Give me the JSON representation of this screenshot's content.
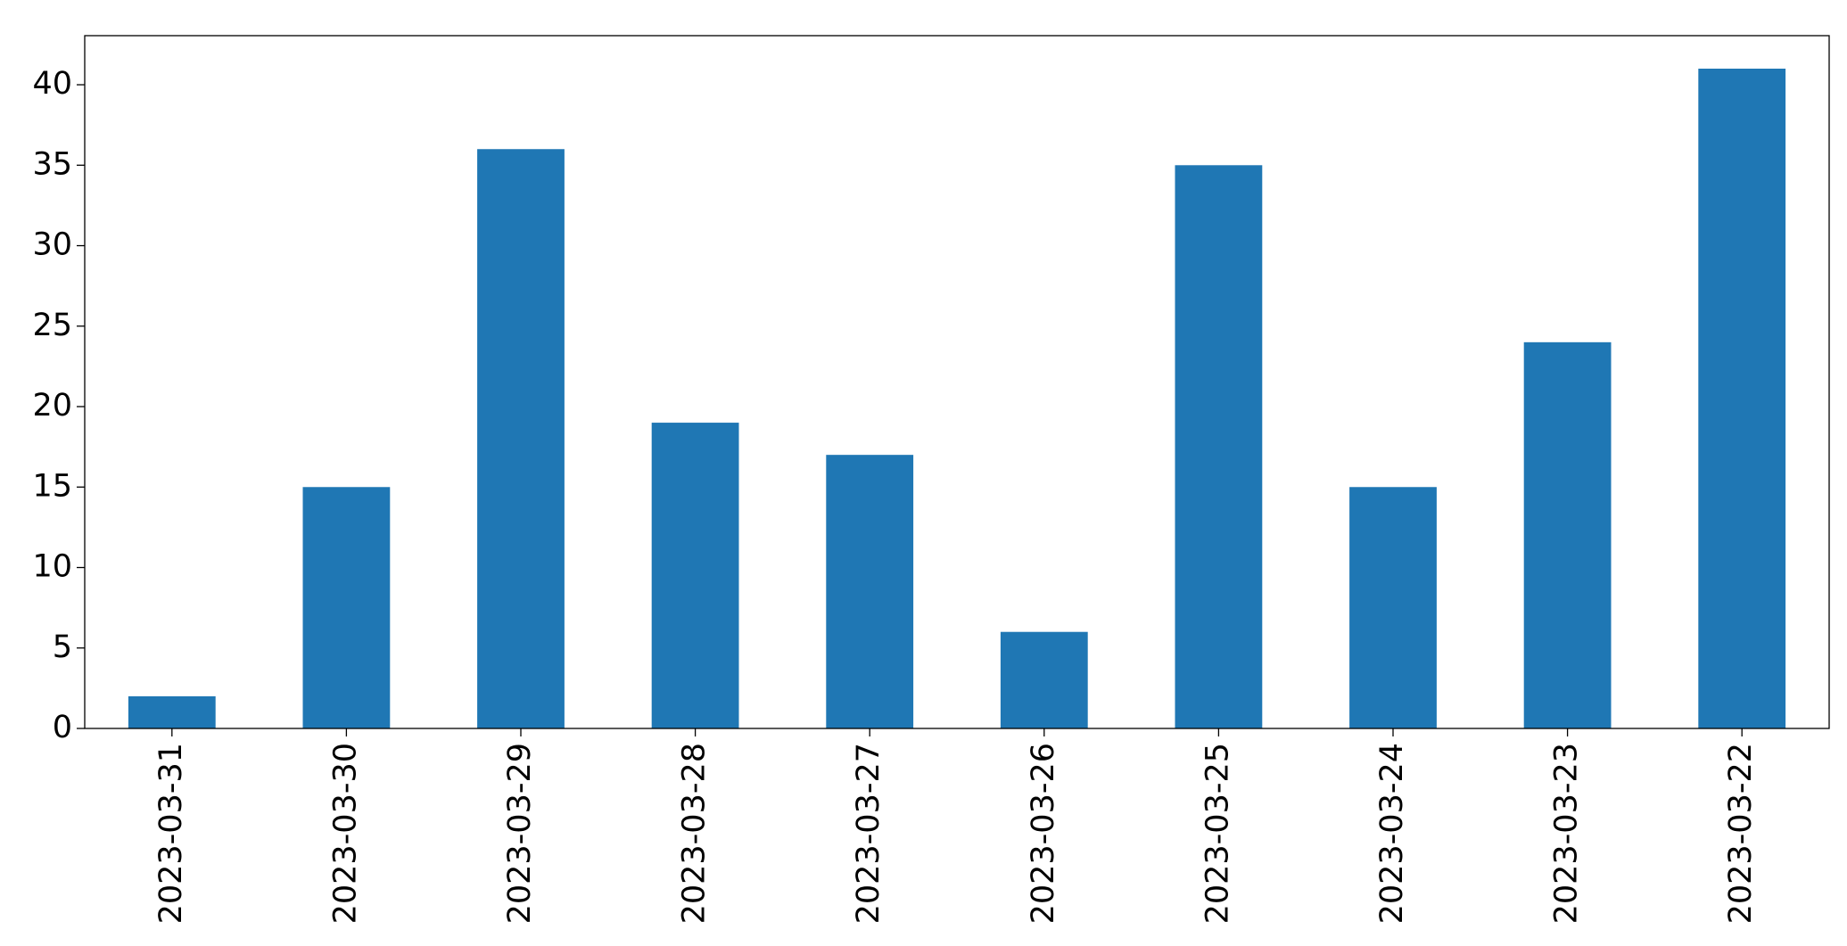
{
  "chart_data": {
    "type": "bar",
    "categories": [
      "2023-03-31",
      "2023-03-30",
      "2023-03-29",
      "2023-03-28",
      "2023-03-27",
      "2023-03-26",
      "2023-03-25",
      "2023-03-24",
      "2023-03-23",
      "2023-03-22"
    ],
    "values": [
      2,
      15,
      36,
      19,
      17,
      6,
      35,
      15,
      24,
      41
    ],
    "color": "#1f77b4",
    "ylim": [
      0,
      43.05
    ],
    "yticks": [
      0,
      5,
      10,
      15,
      20,
      25,
      30,
      35,
      40
    ],
    "grid": false
  }
}
